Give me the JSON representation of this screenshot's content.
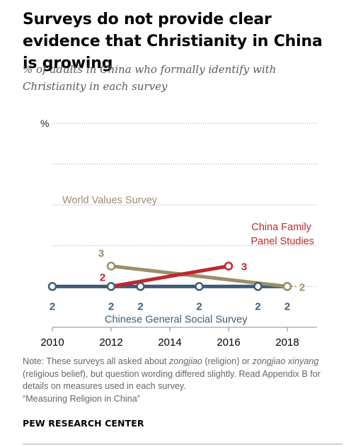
{
  "header": {
    "title": "Surveys do not provide clear evidence that Christianity in China is growing",
    "subtitle": "% of adults in China who formally identify with Christianity in each survey"
  },
  "footer": {
    "note": "Note: These surveys all asked about zongjiao (religion) or zongjiao xinyang (religious belief), but question wording differed slightly. Read Appendix B for details on measures used in each survey.",
    "note_parts": {
      "p1": "Note: These surveys all asked about ",
      "i1": "zongjiao",
      "p2": " (religion) or ",
      "i2": "zongjiao xinyang",
      "p3": " (religious belief), but question wording differed slightly. Read Appendix B for details on measures used in each survey."
    },
    "source_line": "“Measuring Religion in China”",
    "brand": "PEW RESEARCH CENTER"
  },
  "chart_data": {
    "type": "line",
    "unit_label": "%",
    "xlim": [
      2010,
      2018
    ],
    "ylim": [
      0,
      10
    ],
    "x_ticks": [
      2010,
      2012,
      2014,
      2016,
      2018
    ],
    "y_gridlines": [
      2,
      4,
      6,
      8,
      10
    ],
    "grid": true,
    "legend": "inline labels",
    "series": [
      {
        "name": "Chinese General Social Survey",
        "color": "#3e5d74",
        "x": [
          2010,
          2012,
          2013,
          2015,
          2017,
          2018
        ],
        "y": [
          2,
          2,
          2,
          2,
          2,
          2
        ],
        "labels": [
          "2",
          "2",
          "2",
          "2",
          "2",
          "2"
        ]
      },
      {
        "name": "China Family Panel Studies",
        "color": "#c1272d",
        "x": [
          2012,
          2016
        ],
        "y": [
          2,
          3
        ],
        "labels": [
          "2",
          "3"
        ]
      },
      {
        "name": "World Values Survey",
        "color": "#9b8f6b",
        "x": [
          2012,
          2018
        ],
        "y": [
          3,
          2
        ],
        "labels": [
          "3",
          "2"
        ]
      }
    ]
  }
}
